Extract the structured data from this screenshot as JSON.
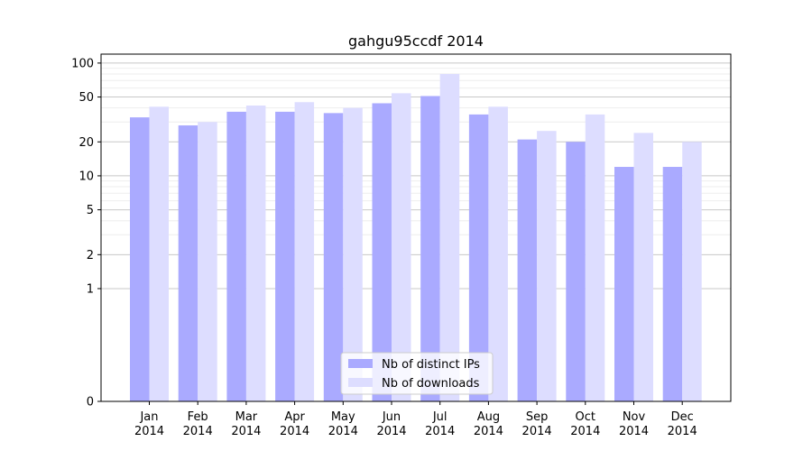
{
  "chart_data": {
    "type": "bar",
    "title": "gahgu95ccdf 2014",
    "xlabel": "",
    "ylabel": "",
    "yscale": "symlog",
    "ylim": [
      0,
      120
    ],
    "yticks": [
      0,
      1,
      2,
      5,
      10,
      20,
      50,
      100
    ],
    "grid": "horizontal",
    "legend_position": "lower center",
    "categories": [
      [
        "Jan",
        "2014"
      ],
      [
        "Feb",
        "2014"
      ],
      [
        "Mar",
        "2014"
      ],
      [
        "Apr",
        "2014"
      ],
      [
        "May",
        "2014"
      ],
      [
        "Jun",
        "2014"
      ],
      [
        "Jul",
        "2014"
      ],
      [
        "Aug",
        "2014"
      ],
      [
        "Sep",
        "2014"
      ],
      [
        "Oct",
        "2014"
      ],
      [
        "Nov",
        "2014"
      ],
      [
        "Dec",
        "2014"
      ]
    ],
    "series": [
      {
        "name": "Nb of distinct IPs",
        "color": "#aaaaff",
        "values": [
          33,
          28,
          37,
          37,
          36,
          44,
          51,
          35,
          21,
          20,
          12,
          12
        ]
      },
      {
        "name": "Nb of downloads",
        "color": "#ddddff",
        "values": [
          41,
          30,
          42,
          45,
          40,
          54,
          80,
          41,
          25,
          35,
          24,
          20
        ]
      }
    ]
  }
}
